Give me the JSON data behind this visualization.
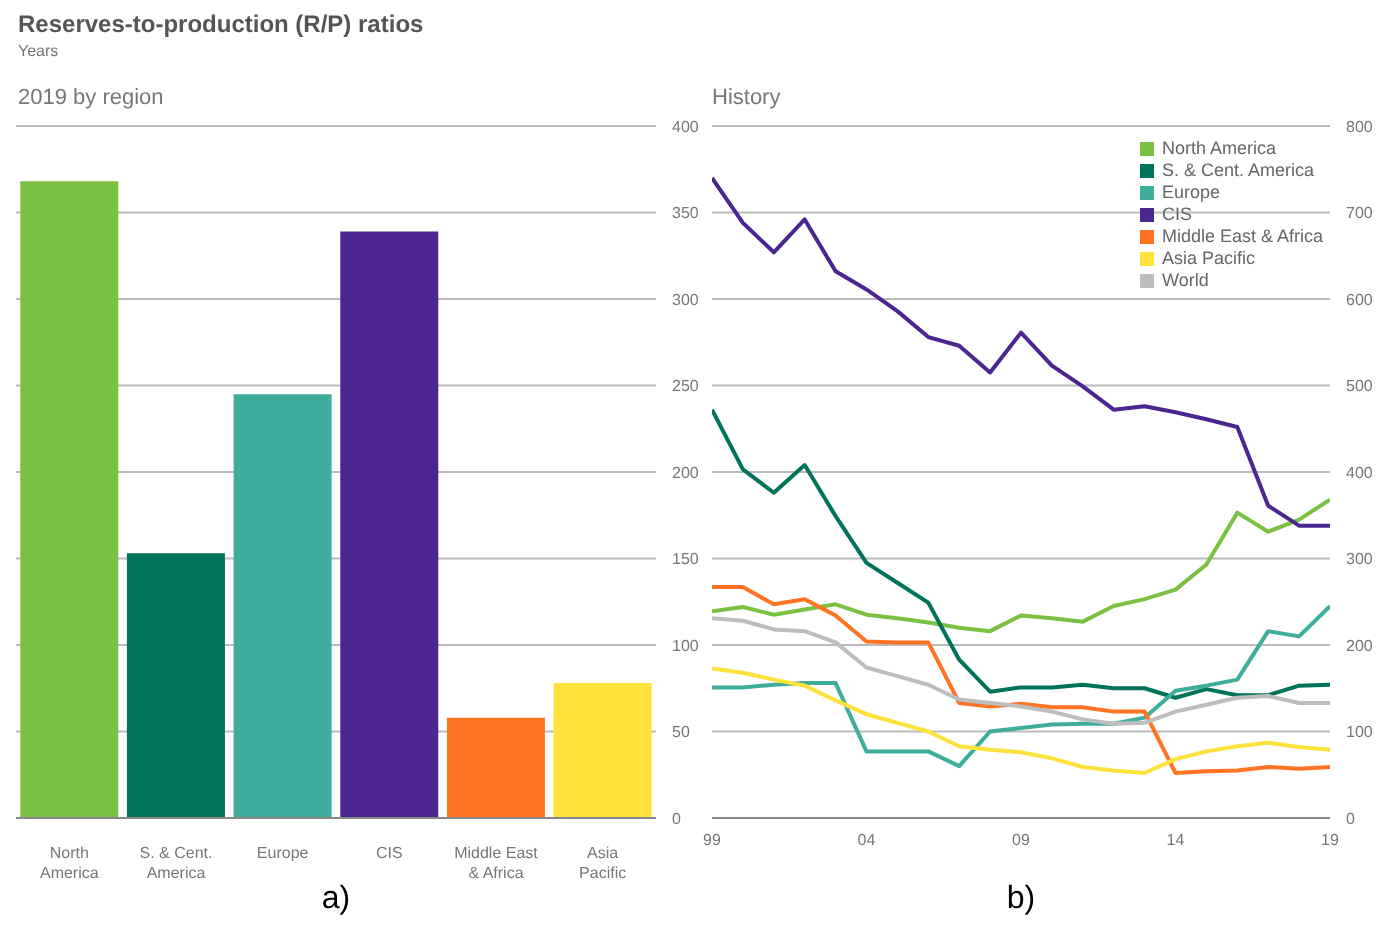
{
  "chart_data": [
    {
      "type": "bar",
      "title": "2019 by region",
      "xlabel": "a)",
      "annotations": [
        "Reserves-to-production (R/P) ratios",
        "Years"
      ],
      "categories": [
        "North America",
        "S. & Cent. America",
        "Europe",
        "CIS",
        "Middle East & Africa",
        "Asia Pacific"
      ],
      "values": [
        368,
        153,
        245,
        339,
        58,
        78
      ],
      "colors": [
        "#7ac143",
        "#00735a",
        "#3fad9c",
        "#4b2690",
        "#ff7322",
        "#ffe13c"
      ],
      "ylim": [
        0,
        400
      ],
      "yticks": [
        0,
        50,
        100,
        150,
        200,
        250,
        300,
        350,
        400
      ],
      "grid": "y"
    },
    {
      "type": "line",
      "title": "History",
      "xlabel": "b)",
      "x": [
        1999,
        2000,
        2001,
        2002,
        2003,
        2004,
        2005,
        2006,
        2007,
        2008,
        2009,
        2010,
        2011,
        2012,
        2013,
        2014,
        2015,
        2016,
        2017,
        2018,
        2019
      ],
      "series": [
        {
          "name": "North America",
          "color": "#7ac143",
          "values": [
            239,
            244,
            235,
            241,
            247,
            235,
            231,
            226,
            220,
            216,
            234,
            231,
            227,
            245,
            253,
            264,
            293,
            353,
            331,
            345,
            368
          ]
        },
        {
          "name": "S. & Cent. America",
          "color": "#00735a",
          "values": [
            472,
            403,
            376,
            408,
            349,
            295,
            272,
            249,
            183,
            146,
            151,
            151,
            154,
            150,
            150,
            139,
            149,
            142,
            142,
            153,
            154
          ]
        },
        {
          "name": "Europe",
          "color": "#3fad9c",
          "values": [
            151,
            151,
            154,
            156,
            156,
            77,
            77,
            77,
            60,
            100,
            104,
            108,
            109,
            109,
            116,
            147,
            153,
            160,
            216,
            210,
            245
          ]
        },
        {
          "name": "CIS",
          "color": "#4b2690",
          "values": [
            740,
            688,
            654,
            692,
            632,
            611,
            586,
            556,
            546,
            515,
            561,
            523,
            499,
            472,
            476,
            469,
            461,
            452,
            361,
            338,
            338
          ]
        },
        {
          "name": "Middle East & Africa",
          "color": "#ff7322",
          "values": [
            267,
            267,
            247,
            253,
            234,
            204,
            203,
            203,
            133,
            129,
            132,
            128,
            128,
            123,
            123,
            52,
            54,
            55,
            59,
            57,
            59
          ]
        },
        {
          "name": "Asia Pacific",
          "color": "#ffe13c",
          "values": [
            173,
            168,
            160,
            153,
            136,
            120,
            110,
            100,
            83,
            79,
            76,
            69,
            59,
            55,
            52,
            68,
            77,
            83,
            87,
            82,
            79
          ]
        },
        {
          "name": "World",
          "color": "#bdbdbd",
          "values": [
            231,
            228,
            218,
            216,
            203,
            174,
            164,
            154,
            137,
            133,
            129,
            123,
            114,
            109,
            110,
            123,
            131,
            139,
            141,
            133,
            133
          ]
        }
      ],
      "xlim": [
        1999,
        2019
      ],
      "xticks": [
        {
          "value": 1999,
          "label": "99"
        },
        {
          "value": 2004,
          "label": "04"
        },
        {
          "value": 2009,
          "label": "09"
        },
        {
          "value": 2014,
          "label": "14"
        },
        {
          "value": 2019,
          "label": "19"
        }
      ],
      "ylim": [
        0,
        800
      ],
      "yticks": [
        0,
        100,
        200,
        300,
        400,
        500,
        600,
        700,
        800
      ],
      "grid": "y",
      "legend": "top right",
      "marker": "none",
      "line_style": "solid"
    }
  ]
}
